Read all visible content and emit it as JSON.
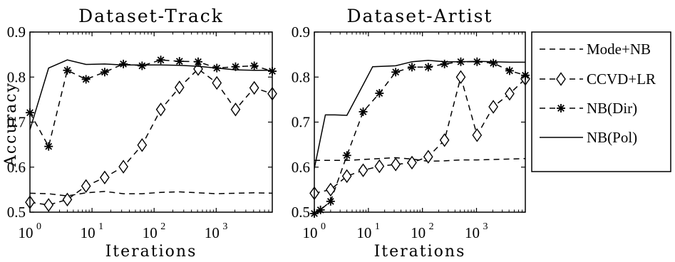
{
  "chart_data": [
    {
      "type": "line",
      "title": "Dataset-Track",
      "xlabel": "Iterations",
      "ylabel": "Accuracy",
      "xscale": "log",
      "xlim": [
        1,
        8000
      ],
      "ylim": [
        0.5,
        0.9
      ],
      "yticks": [
        "0.5",
        "0.6",
        "0.7",
        "0.8",
        "0.9"
      ],
      "xticks": [
        {
          "base": "10",
          "exp": "0",
          "value": 1
        },
        {
          "base": "10",
          "exp": "1",
          "value": 10
        },
        {
          "base": "10",
          "exp": "2",
          "value": 100
        },
        {
          "base": "10",
          "exp": "3",
          "value": 1000
        }
      ],
      "series": [
        {
          "name": "Mode+NB",
          "style": "dashed",
          "x": [
            1,
            2,
            4,
            8,
            16,
            32,
            64,
            128,
            256,
            512,
            1024,
            2048,
            4096,
            8000
          ],
          "y": [
            0.542,
            0.541,
            0.536,
            0.543,
            0.546,
            0.541,
            0.541,
            0.544,
            0.545,
            0.543,
            0.541,
            0.542,
            0.543,
            0.542
          ]
        },
        {
          "name": "CCVD+LR",
          "style": "dashed-diamond",
          "x": [
            1,
            2,
            4,
            8,
            16,
            32,
            64,
            128,
            256,
            512,
            1024,
            2048,
            4096,
            8000
          ],
          "y": [
            0.522,
            0.516,
            0.528,
            0.558,
            0.577,
            0.601,
            0.649,
            0.728,
            0.777,
            0.818,
            0.787,
            0.728,
            0.776,
            0.763
          ]
        },
        {
          "name": "NB(Dir)",
          "style": "dashed-star",
          "x": [
            1,
            2,
            4,
            8,
            16,
            32,
            64,
            128,
            256,
            512,
            1024,
            2048,
            4096,
            8000
          ],
          "y": [
            0.721,
            0.646,
            0.815,
            0.795,
            0.811,
            0.829,
            0.825,
            0.838,
            0.835,
            0.834,
            0.82,
            0.823,
            0.825,
            0.813
          ]
        },
        {
          "name": "NB(Pol)",
          "style": "solid",
          "x": [
            1,
            2,
            4,
            8,
            16,
            32,
            64,
            128,
            256,
            512,
            1024,
            2048,
            4096,
            8000
          ],
          "y": [
            0.683,
            0.82,
            0.838,
            0.828,
            0.829,
            0.827,
            0.827,
            0.827,
            0.826,
            0.824,
            0.82,
            0.816,
            0.815,
            0.815
          ]
        }
      ]
    },
    {
      "type": "line",
      "title": "Dataset-Artist",
      "xlabel": "Iterations",
      "ylabel": "",
      "xscale": "log",
      "xlim": [
        1,
        8000
      ],
      "ylim": [
        0.5,
        0.9
      ],
      "yticks": [
        "0.5",
        "0.6",
        "0.7",
        "0.8",
        "0.9"
      ],
      "xticks": [
        {
          "base": "10",
          "exp": "0",
          "value": 1
        },
        {
          "base": "10",
          "exp": "1",
          "value": 10
        },
        {
          "base": "10",
          "exp": "2",
          "value": 100
        },
        {
          "base": "10",
          "exp": "3",
          "value": 1000
        }
      ],
      "series": [
        {
          "name": "Mode+NB",
          "style": "dashed",
          "x": [
            1,
            2,
            4,
            8,
            16,
            32,
            64,
            128,
            256,
            512,
            1024,
            2048,
            4096,
            8000
          ],
          "y": [
            0.615,
            0.615,
            0.615,
            0.617,
            0.619,
            0.621,
            0.618,
            0.613,
            0.614,
            0.616,
            0.616,
            0.617,
            0.618,
            0.619
          ]
        },
        {
          "name": "CCVD+LR",
          "style": "dashed-diamond",
          "x": [
            1,
            2,
            4,
            8,
            16,
            32,
            64,
            128,
            256,
            512,
            1024,
            2048,
            4096,
            8000
          ],
          "y": [
            0.542,
            0.55,
            0.58,
            0.593,
            0.602,
            0.606,
            0.61,
            0.623,
            0.66,
            0.8,
            0.671,
            0.734,
            0.763,
            0.796
          ]
        },
        {
          "name": "NB(Dir)",
          "style": "dashed-star",
          "x": [
            1,
            1.3,
            2,
            4,
            8,
            16,
            32,
            64,
            128,
            256,
            512,
            1024,
            2048,
            4096,
            8000
          ],
          "y": [
            0.497,
            0.505,
            0.524,
            0.626,
            0.723,
            0.764,
            0.811,
            0.822,
            0.822,
            0.829,
            0.834,
            0.834,
            0.831,
            0.814,
            0.804
          ]
        },
        {
          "name": "NB(Pol)",
          "style": "solid",
          "x": [
            1,
            1.6,
            2.4,
            4,
            8,
            12,
            32,
            64,
            128,
            256,
            512,
            1024,
            2048,
            4096,
            8000
          ],
          "y": [
            0.597,
            0.716,
            0.716,
            0.715,
            0.783,
            0.823,
            0.825,
            0.834,
            0.837,
            0.834,
            0.834,
            0.835,
            0.834,
            0.833,
            0.833
          ]
        }
      ]
    }
  ],
  "legend": {
    "placement": "right",
    "items": [
      {
        "label": "Mode+NB",
        "style": "dashed"
      },
      {
        "label": "CCVD+LR",
        "style": "dashed-diamond"
      },
      {
        "label": "NB(Dir)",
        "style": "dashed-star"
      },
      {
        "label": "NB(Pol)",
        "style": "solid"
      }
    ]
  }
}
